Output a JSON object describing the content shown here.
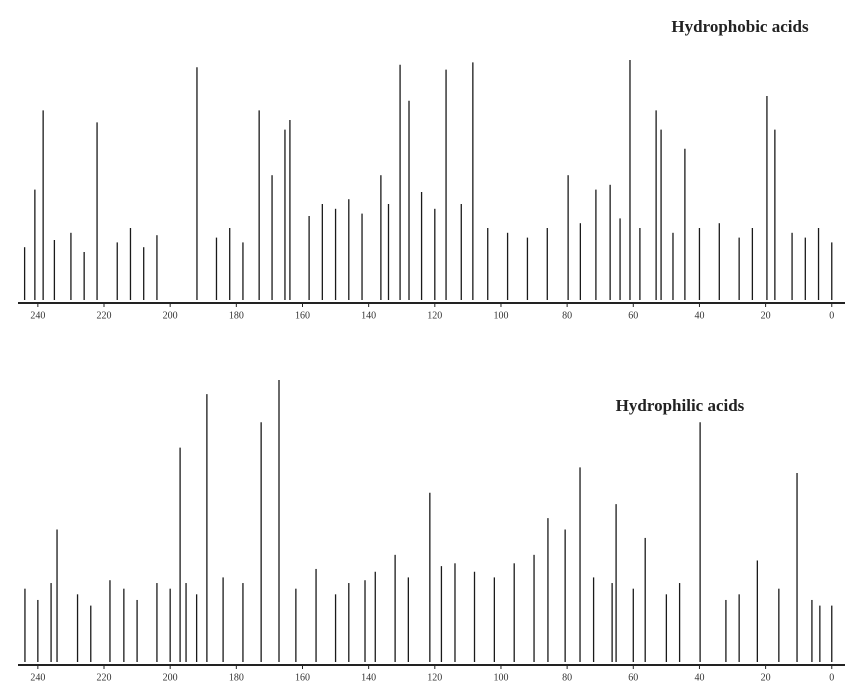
{
  "chart_data": [
    {
      "type": "spectrum",
      "title": "Hydrophobic acids",
      "color": "#1a1a1a",
      "xlim": [
        246,
        -4
      ],
      "xticks": [
        240,
        220,
        200,
        180,
        160,
        140,
        120,
        100,
        80,
        60,
        40,
        20,
        0
      ],
      "x": [
        238.4,
        222.1,
        240.9,
        191.9,
        173.1,
        169.2,
        165.3,
        163.8,
        130.5,
        127.8,
        116.6,
        108.5,
        136.3,
        79.7,
        61.0,
        53.1,
        51.6,
        44.4,
        19.6,
        17.2,
        71.3,
        67.0,
        244,
        235,
        230,
        226,
        216,
        212,
        208,
        204,
        186,
        182,
        178,
        158,
        154,
        150,
        146,
        142,
        134,
        124,
        120,
        112,
        104,
        98,
        92,
        86,
        76,
        64,
        58,
        48,
        40,
        34,
        28,
        24,
        12,
        8,
        4,
        0
      ],
      "values": [
        79,
        74,
        46,
        97,
        79,
        52,
        71,
        75,
        98,
        83,
        96,
        99,
        52,
        52,
        100,
        79,
        71,
        63,
        85,
        71,
        46,
        48,
        22,
        25,
        28,
        20,
        24,
        30,
        22,
        27,
        26,
        30,
        24,
        35,
        40,
        38,
        42,
        36,
        40,
        45,
        38,
        40,
        30,
        28,
        26,
        30,
        32,
        34,
        30,
        28,
        30,
        32,
        26,
        30,
        28,
        26,
        30,
        24
      ]
    },
    {
      "type": "spectrum",
      "title": "Hydrophilic acids",
      "color": "#1a1a1a",
      "xlim": [
        246,
        -4
      ],
      "xticks": [
        240,
        220,
        200,
        180,
        160,
        140,
        120,
        100,
        80,
        60,
        40,
        20,
        0
      ],
      "x": [
        234.2,
        243.9,
        218.2,
        197.0,
        195.2,
        188.9,
        172.5,
        167.1,
        155.9,
        141.1,
        132.0,
        121.5,
        113.9,
        85.8,
        80.6,
        76.1,
        65.2,
        56.4,
        39.8,
        22.5,
        10.5,
        3.6,
        66.4,
        240,
        236,
        228,
        224,
        214,
        210,
        204,
        200,
        192,
        184,
        178,
        162,
        150,
        146,
        138,
        128,
        118,
        108,
        102,
        96,
        90,
        72,
        60,
        50,
        46,
        32,
        28,
        16,
        6,
        0
      ],
      "values": [
        47,
        26,
        29,
        76,
        28,
        95,
        85,
        100,
        33,
        29,
        38,
        60,
        35,
        51,
        47,
        69,
        56,
        44,
        85,
        36,
        67,
        20,
        28,
        22,
        28,
        24,
        20,
        26,
        22,
        28,
        26,
        24,
        30,
        28,
        26,
        24,
        28,
        32,
        30,
        34,
        32,
        30,
        35,
        38,
        30,
        26,
        24,
        28,
        22,
        24,
        26,
        22,
        20
      ]
    }
  ]
}
